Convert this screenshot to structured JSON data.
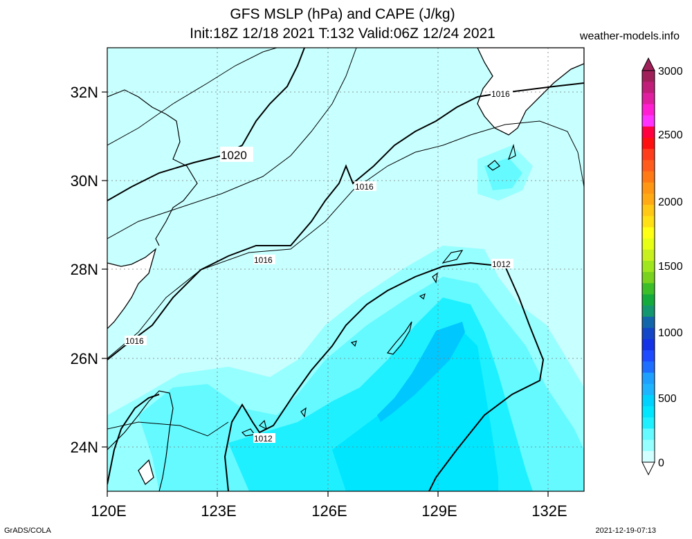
{
  "header": {
    "title_line1": "GFS MSLP (hPa) and CAPE (J/kg)",
    "title_line2": "Init:18Z 12/18 2021 T:132 Valid:06Z 12/24 2021",
    "site": "weather-models.info"
  },
  "footer": {
    "left": "GrADS/COLA",
    "right": "2021-12-19-07:13"
  },
  "map": {
    "lon_labels": [
      "120E",
      "123E",
      "126E",
      "129E",
      "132E"
    ],
    "lat_labels": [
      "32N",
      "30N",
      "28N",
      "26N",
      "24N"
    ],
    "isobar_labels": [
      "1020",
      "1016",
      "1016",
      "1016",
      "1016",
      "1012",
      "1012"
    ]
  },
  "colorbar": {
    "labels": [
      "3000",
      "2500",
      "2000",
      "1500",
      "1000",
      "500",
      "0"
    ],
    "colors": [
      "#a0215a",
      "#c01e78",
      "#e01ea0",
      "#ff1ed2",
      "#ff32ff",
      "#ff0040",
      "#ff1010",
      "#ff3c1c",
      "#ff5c1e",
      "#ff7a14",
      "#ff9614",
      "#ffaa14",
      "#ffc814",
      "#ffe014",
      "#ffff14",
      "#e6ff14",
      "#c8f01e",
      "#a0e61e",
      "#78d21e",
      "#3cbe28",
      "#14aa3c",
      "#14966e",
      "#1466aa",
      "#1446c8",
      "#1432e6",
      "#1e4bff",
      "#1e6eff",
      "#1ea0ff",
      "#1eb4ff",
      "#00d2ff",
      "#00e6ff",
      "#1ef0ff",
      "#64faff",
      "#96ffff",
      "#d2ffff"
    ]
  }
}
